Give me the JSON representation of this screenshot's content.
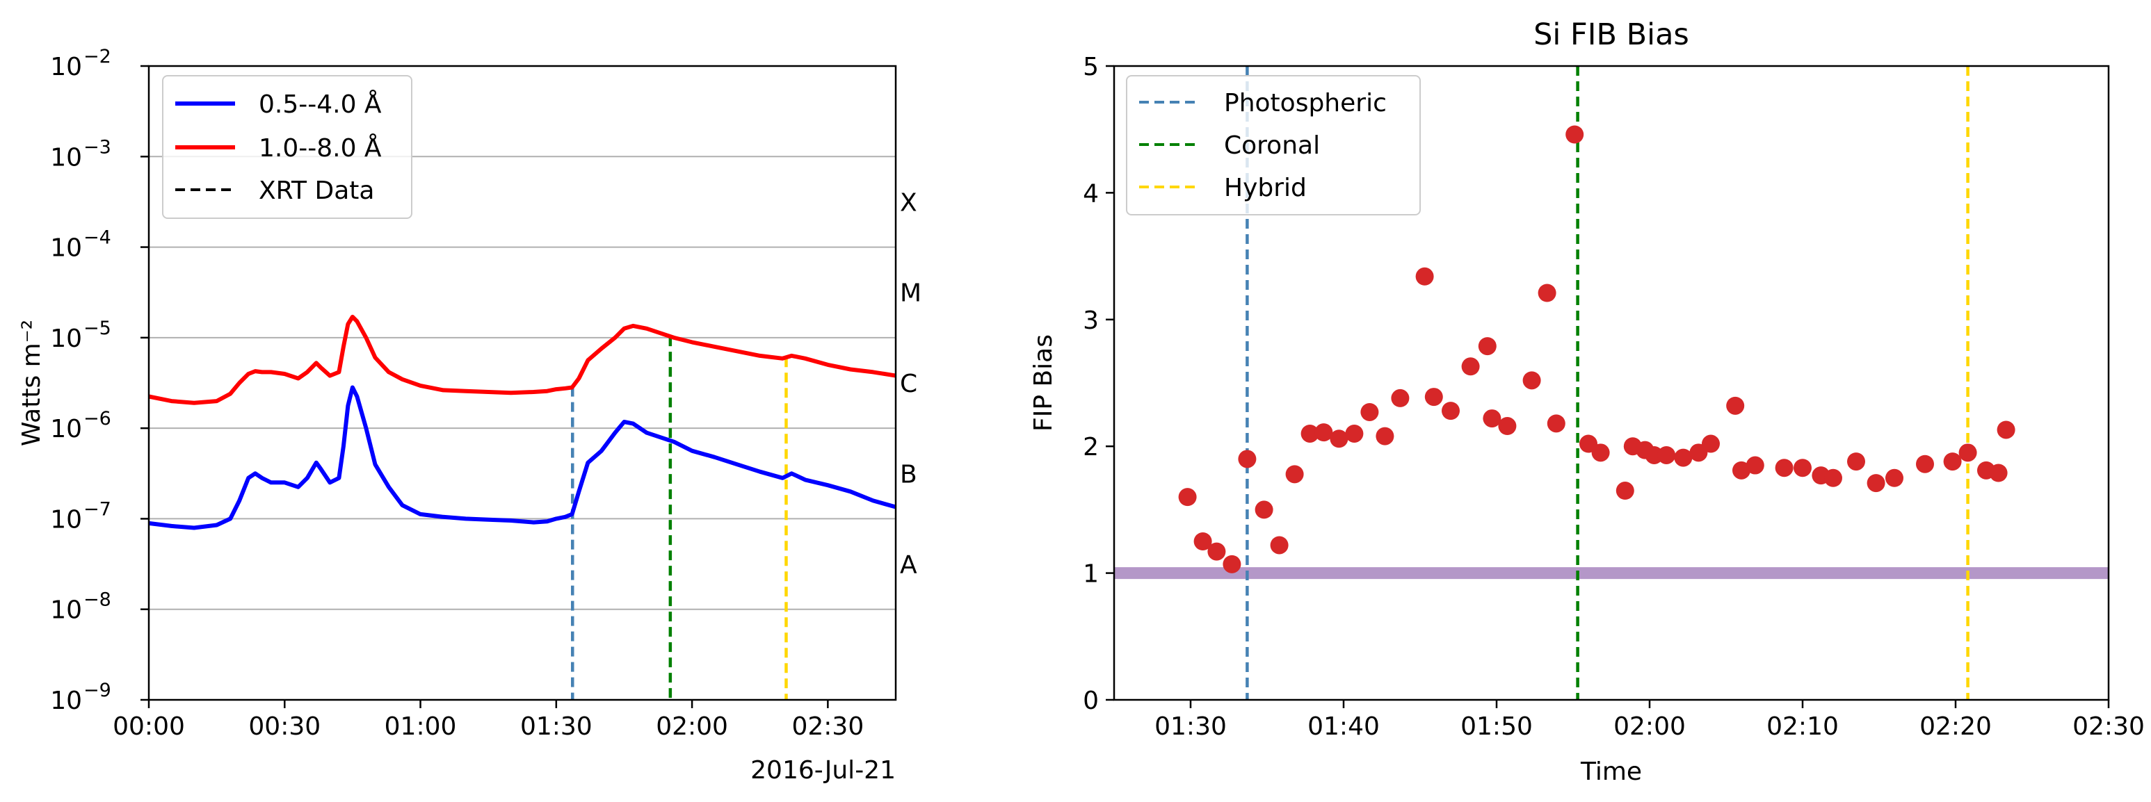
{
  "chart_data": [
    {
      "type": "line",
      "title": "",
      "ylabel": "Watts m⁻²",
      "xlabel": "",
      "date_label": "2016-Jul-21",
      "yscale": "log",
      "ylim_exp": [
        -9,
        -2
      ],
      "xlim_min": [
        0,
        165
      ],
      "x_ticks": [
        {
          "min": 0,
          "label": "00:00"
        },
        {
          "min": 30,
          "label": "00:30"
        },
        {
          "min": 60,
          "label": "01:00"
        },
        {
          "min": 90,
          "label": "01:30"
        },
        {
          "min": 120,
          "label": "02:00"
        },
        {
          "min": 150,
          "label": "02:30"
        }
      ],
      "y_ticks": [
        {
          "exp": -9,
          "base": "10",
          "sup": "−9"
        },
        {
          "exp": -8,
          "base": "10",
          "sup": "−8"
        },
        {
          "exp": -7,
          "base": "10",
          "sup": "−7"
        },
        {
          "exp": -6,
          "base": "10",
          "sup": "−6"
        },
        {
          "exp": -5,
          "base": "10",
          "sup": "−5"
        },
        {
          "exp": -4,
          "base": "10",
          "sup": "−4"
        },
        {
          "exp": -3,
          "base": "10",
          "sup": "−3"
        },
        {
          "exp": -2,
          "base": "10",
          "sup": "−2"
        }
      ],
      "gridlines_exp": [
        -8,
        -7,
        -6,
        -5,
        -4,
        -3
      ],
      "flare_classes": [
        {
          "label": "A",
          "exp": -7.5
        },
        {
          "label": "B",
          "exp": -6.5
        },
        {
          "label": "C",
          "exp": -5.5
        },
        {
          "label": "M",
          "exp": -4.5
        },
        {
          "label": "X",
          "exp": -3.5
        }
      ],
      "legend": [
        {
          "label": "0.5--4.0 Å",
          "color": "#0000ff",
          "style": "solid"
        },
        {
          "label": "1.0--8.0 Å",
          "color": "#ff0000",
          "style": "solid"
        },
        {
          "label": "XRT Data",
          "color": "#000000",
          "style": "dashed"
        }
      ],
      "series": [
        {
          "name": "0.5--4.0 Å",
          "color": "#0000ff",
          "x": [
            0,
            5,
            10,
            15,
            18,
            20,
            22,
            23.5,
            25,
            27,
            30,
            33,
            35,
            37,
            38,
            40,
            42,
            43,
            44,
            45,
            46,
            48,
            50,
            53,
            56,
            60,
            65,
            70,
            75,
            80,
            85,
            88,
            90,
            92,
            93.5,
            95,
            97,
            100,
            103,
            105,
            107,
            110,
            113,
            116,
            120,
            125,
            130,
            135,
            140,
            142,
            145,
            150,
            155,
            160,
            165
          ],
          "y_exp": [
            -7.05,
            -7.08,
            -7.1,
            -7.07,
            -7.0,
            -6.8,
            -6.55,
            -6.5,
            -6.55,
            -6.6,
            -6.6,
            -6.65,
            -6.55,
            -6.38,
            -6.45,
            -6.6,
            -6.55,
            -6.2,
            -5.75,
            -5.55,
            -5.65,
            -6.0,
            -6.4,
            -6.65,
            -6.85,
            -6.95,
            -6.98,
            -7.0,
            -7.01,
            -7.02,
            -7.04,
            -7.03,
            -7.0,
            -6.98,
            -6.95,
            -6.7,
            -6.38,
            -6.25,
            -6.05,
            -5.93,
            -5.95,
            -6.05,
            -6.1,
            -6.15,
            -6.25,
            -6.32,
            -6.4,
            -6.48,
            -6.55,
            -6.5,
            -6.57,
            -6.63,
            -6.7,
            -6.8,
            -6.87
          ]
        },
        {
          "name": "1.0--8.0 Å",
          "color": "#ff0000",
          "x": [
            0,
            5,
            10,
            15,
            18,
            20,
            22,
            23.5,
            25,
            27,
            30,
            33,
            35,
            37,
            38,
            40,
            42,
            43,
            44,
            45,
            46,
            48,
            50,
            53,
            56,
            60,
            65,
            70,
            75,
            80,
            85,
            88,
            90,
            92,
            93.5,
            95,
            97,
            100,
            103,
            105,
            107,
            110,
            113,
            116,
            120,
            125,
            130,
            135,
            140,
            142,
            145,
            150,
            155,
            160,
            165
          ],
          "y_exp": [
            -5.65,
            -5.7,
            -5.72,
            -5.7,
            -5.62,
            -5.5,
            -5.4,
            -5.37,
            -5.38,
            -5.38,
            -5.4,
            -5.45,
            -5.38,
            -5.28,
            -5.33,
            -5.42,
            -5.38,
            -5.1,
            -4.85,
            -4.77,
            -4.82,
            -5.0,
            -5.22,
            -5.38,
            -5.46,
            -5.53,
            -5.58,
            -5.59,
            -5.6,
            -5.61,
            -5.6,
            -5.59,
            -5.57,
            -5.56,
            -5.55,
            -5.45,
            -5.25,
            -5.12,
            -5.0,
            -4.9,
            -4.87,
            -4.9,
            -4.95,
            -5.0,
            -5.05,
            -5.1,
            -5.15,
            -5.2,
            -5.23,
            -5.2,
            -5.23,
            -5.3,
            -5.35,
            -5.38,
            -5.42
          ]
        }
      ],
      "vlines": [
        {
          "min": 93.6,
          "color": "#4682b4",
          "name": "photospheric"
        },
        {
          "min": 115.2,
          "color": "#008000",
          "name": "coronal"
        },
        {
          "min": 140.8,
          "color": "#ffd700",
          "name": "hybrid"
        }
      ]
    },
    {
      "type": "scatter",
      "title": "Si FIB Bias",
      "xlabel": "Time",
      "ylabel": "FIP Bias",
      "xlim_min": [
        85,
        150
      ],
      "ylim": [
        0,
        5
      ],
      "x_ticks": [
        {
          "min": 90,
          "label": "01:30"
        },
        {
          "min": 100,
          "label": "01:40"
        },
        {
          "min": 110,
          "label": "01:50"
        },
        {
          "min": 120,
          "label": "02:00"
        },
        {
          "min": 130,
          "label": "02:10"
        },
        {
          "min": 140,
          "label": "02:20"
        },
        {
          "min": 150,
          "label": "02:30"
        }
      ],
      "y_ticks": [
        0,
        1,
        2,
        3,
        4,
        5
      ],
      "hline": {
        "y": 1.0,
        "color": "#b497c8"
      },
      "legend": [
        {
          "label": "Photospheric",
          "color": "#4682b4"
        },
        {
          "label": "Coronal",
          "color": "#008000"
        },
        {
          "label": "Hybrid",
          "color": "#ffd700"
        }
      ],
      "vlines": [
        {
          "min": 93.7,
          "color": "#4682b4",
          "name": "photospheric"
        },
        {
          "min": 115.3,
          "color": "#008000",
          "name": "coronal"
        },
        {
          "min": 140.8,
          "color": "#ffd700",
          "name": "hybrid"
        }
      ],
      "point_color": "#d62728",
      "points": [
        {
          "x": 89.8,
          "y": 1.6
        },
        {
          "x": 90.8,
          "y": 1.25
        },
        {
          "x": 91.7,
          "y": 1.17
        },
        {
          "x": 92.7,
          "y": 1.07
        },
        {
          "x": 93.7,
          "y": 1.9
        },
        {
          "x": 94.8,
          "y": 1.5
        },
        {
          "x": 95.8,
          "y": 1.22
        },
        {
          "x": 96.8,
          "y": 1.78
        },
        {
          "x": 97.8,
          "y": 2.1
        },
        {
          "x": 98.7,
          "y": 2.11
        },
        {
          "x": 99.7,
          "y": 2.06
        },
        {
          "x": 100.7,
          "y": 2.1
        },
        {
          "x": 101.7,
          "y": 2.27
        },
        {
          "x": 102.7,
          "y": 2.08
        },
        {
          "x": 103.7,
          "y": 2.38
        },
        {
          "x": 105.3,
          "y": 3.34
        },
        {
          "x": 105.9,
          "y": 2.39
        },
        {
          "x": 107.0,
          "y": 2.28
        },
        {
          "x": 108.3,
          "y": 2.63
        },
        {
          "x": 109.4,
          "y": 2.79
        },
        {
          "x": 109.7,
          "y": 2.22
        },
        {
          "x": 110.7,
          "y": 2.16
        },
        {
          "x": 112.3,
          "y": 2.52
        },
        {
          "x": 113.3,
          "y": 3.21
        },
        {
          "x": 113.9,
          "y": 2.18
        },
        {
          "x": 115.1,
          "y": 4.46
        },
        {
          "x": 116.0,
          "y": 2.02
        },
        {
          "x": 116.8,
          "y": 1.95
        },
        {
          "x": 118.4,
          "y": 1.65
        },
        {
          "x": 118.9,
          "y": 2.0
        },
        {
          "x": 119.7,
          "y": 1.97
        },
        {
          "x": 120.3,
          "y": 1.93
        },
        {
          "x": 121.1,
          "y": 1.93
        },
        {
          "x": 122.2,
          "y": 1.91
        },
        {
          "x": 123.2,
          "y": 1.95
        },
        {
          "x": 124.0,
          "y": 2.02
        },
        {
          "x": 125.6,
          "y": 2.32
        },
        {
          "x": 126.0,
          "y": 1.81
        },
        {
          "x": 126.9,
          "y": 1.85
        },
        {
          "x": 128.8,
          "y": 1.83
        },
        {
          "x": 130.0,
          "y": 1.83
        },
        {
          "x": 131.2,
          "y": 1.77
        },
        {
          "x": 132.0,
          "y": 1.75
        },
        {
          "x": 133.5,
          "y": 1.88
        },
        {
          "x": 134.8,
          "y": 1.71
        },
        {
          "x": 136.0,
          "y": 1.75
        },
        {
          "x": 138.0,
          "y": 1.86
        },
        {
          "x": 139.8,
          "y": 1.88
        },
        {
          "x": 140.8,
          "y": 1.95
        },
        {
          "x": 142.0,
          "y": 1.81
        },
        {
          "x": 142.8,
          "y": 1.79
        },
        {
          "x": 143.3,
          "y": 2.13
        }
      ]
    }
  ]
}
